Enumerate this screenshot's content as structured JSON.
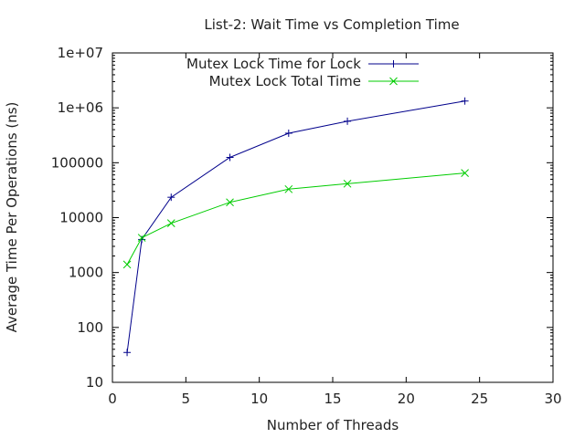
{
  "chart_data": {
    "type": "line",
    "title": "List-2: Wait Time vs Completion Time",
    "xlabel": "Number of Threads",
    "ylabel": "Average Time Per Operations (ns)",
    "xlim": [
      0,
      30
    ],
    "ylim": [
      10,
      10000000
    ],
    "yscale": "log",
    "grid": false,
    "legend_position": "top-right",
    "x_ticks": [
      0,
      5,
      10,
      15,
      20,
      25,
      30
    ],
    "x_tick_labels": [
      "0",
      "5",
      "10",
      "15",
      "20",
      "25",
      "30"
    ],
    "y_ticks": [
      10,
      100,
      1000,
      10000,
      100000,
      1000000,
      10000000
    ],
    "y_tick_labels": [
      "10",
      "100",
      "1000",
      "10000",
      "100000",
      "1e+06",
      "1e+07"
    ],
    "series": [
      {
        "name": "Mutex Lock Time for Lock",
        "color": "#00008b",
        "marker": "plus",
        "x": [
          1,
          2,
          4,
          8,
          12,
          16,
          24
        ],
        "y": [
          35,
          4000,
          23500,
          125000,
          345000,
          570000,
          1330000
        ]
      },
      {
        "name": "Mutex Lock Total Time",
        "color": "#00cc00",
        "marker": "cross",
        "x": [
          1,
          2,
          4,
          8,
          12,
          16,
          24
        ],
        "y": [
          1400,
          4300,
          7900,
          19000,
          33000,
          41500,
          65000
        ]
      }
    ]
  }
}
